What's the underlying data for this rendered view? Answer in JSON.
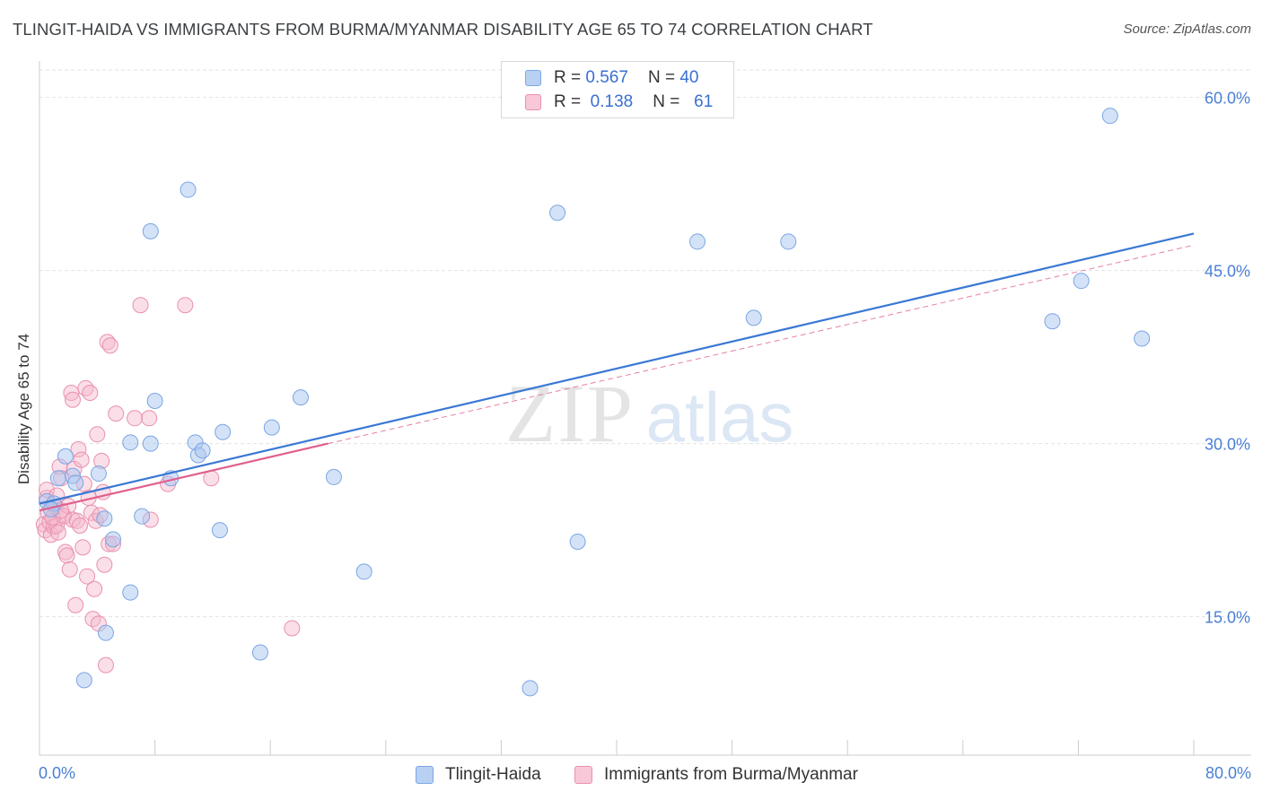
{
  "title": "TLINGIT-HAIDA VS IMMIGRANTS FROM BURMA/MYANMAR DISABILITY AGE 65 TO 74 CORRELATION CHART",
  "source": "Source: ZipAtlas.com",
  "watermark": "ZIPatlas",
  "colors": {
    "blue_fill": "#a9c6ef",
    "blue_stroke": "#7aa6e4",
    "blue_line": "#3a78d4",
    "pink_fill": "#f5b9cd",
    "pink_stroke": "#ea8fb0",
    "pink_line": "#e0608e",
    "tick_text": "#4a7fd4",
    "grid": "#e2e2e2"
  },
  "legend": {
    "rows": [
      {
        "r_label": "R =",
        "r_value": "0.567",
        "n_label": "N =",
        "n_value": "40"
      },
      {
        "r_label": "R =",
        "r_value": "0.138",
        "n_label": "N =",
        "n_value": "61"
      }
    ]
  },
  "chart_data": {
    "type": "scatter",
    "title": "TLINGIT-HAIDA VS IMMIGRANTS FROM BURMA/MYANMAR DISABILITY AGE 65 TO 74 CORRELATION CHART",
    "xlabel": "",
    "ylabel": "Disability Age 65 to 74",
    "xlim": [
      0,
      80
    ],
    "ylim": [
      3,
      63
    ],
    "x_tick_labels": [
      "0.0%",
      "80.0%"
    ],
    "y_ticks": [
      15,
      30,
      45,
      60
    ],
    "y_tick_labels": [
      "15.0%",
      "30.0%",
      "45.0%",
      "60.0%"
    ],
    "grid": true,
    "legend_position": "top-center",
    "series": [
      {
        "name": "Tlingit-Haida",
        "r": 0.567,
        "n": 40,
        "points": [
          [
            0.5,
            25.0
          ],
          [
            1.0,
            24.8
          ],
          [
            1.3,
            27.0
          ],
          [
            1.8,
            28.9
          ],
          [
            2.3,
            27.2
          ],
          [
            2.5,
            26.6
          ],
          [
            4.1,
            27.4
          ],
          [
            4.5,
            23.5
          ],
          [
            5.1,
            21.7
          ],
          [
            3.1,
            9.5
          ],
          [
            4.6,
            13.6
          ],
          [
            6.3,
            30.1
          ],
          [
            6.3,
            17.1
          ],
          [
            7.1,
            23.7
          ],
          [
            7.7,
            48.4
          ],
          [
            7.7,
            30.0
          ],
          [
            8.0,
            33.7
          ],
          [
            9.1,
            27.0
          ],
          [
            10.3,
            52.0
          ],
          [
            10.8,
            30.1
          ],
          [
            11.0,
            29.0
          ],
          [
            11.3,
            29.4
          ],
          [
            12.5,
            22.5
          ],
          [
            12.7,
            31.0
          ],
          [
            15.3,
            11.9
          ],
          [
            16.1,
            31.4
          ],
          [
            18.1,
            34.0
          ],
          [
            20.4,
            27.1
          ],
          [
            22.5,
            18.9
          ],
          [
            34.0,
            8.8
          ],
          [
            35.9,
            50.0
          ],
          [
            37.3,
            21.5
          ],
          [
            45.6,
            47.5
          ],
          [
            49.5,
            40.9
          ],
          [
            51.9,
            47.5
          ],
          [
            70.2,
            40.6
          ],
          [
            72.2,
            44.1
          ],
          [
            74.2,
            58.4
          ],
          [
            76.4,
            39.1
          ],
          [
            0.8,
            24.3
          ]
        ],
        "trend": {
          "x": [
            0,
            80
          ],
          "y": [
            24.8,
            48.2
          ]
        }
      },
      {
        "name": "Immigrants from Burma/Myanmar",
        "r": 0.138,
        "n": 61,
        "points": [
          [
            0.3,
            23.0
          ],
          [
            0.4,
            22.5
          ],
          [
            0.5,
            25.3
          ],
          [
            0.5,
            26.0
          ],
          [
            0.6,
            24.0
          ],
          [
            0.7,
            23.2
          ],
          [
            0.8,
            22.1
          ],
          [
            1.0,
            22.8
          ],
          [
            1.1,
            24.5
          ],
          [
            1.2,
            22.9
          ],
          [
            1.2,
            25.5
          ],
          [
            1.3,
            22.3
          ],
          [
            1.4,
            28.0
          ],
          [
            1.5,
            27.0
          ],
          [
            1.6,
            23.8
          ],
          [
            1.7,
            23.7
          ],
          [
            1.8,
            20.6
          ],
          [
            1.9,
            20.3
          ],
          [
            2.0,
            24.6
          ],
          [
            2.1,
            19.1
          ],
          [
            2.2,
            34.4
          ],
          [
            2.3,
            33.8
          ],
          [
            2.3,
            23.4
          ],
          [
            2.4,
            27.8
          ],
          [
            2.5,
            16.0
          ],
          [
            2.6,
            23.3
          ],
          [
            2.7,
            29.5
          ],
          [
            2.8,
            22.9
          ],
          [
            2.9,
            28.6
          ],
          [
            3.0,
            21.0
          ],
          [
            3.1,
            26.5
          ],
          [
            3.2,
            34.8
          ],
          [
            3.3,
            18.5
          ],
          [
            3.4,
            25.3
          ],
          [
            3.5,
            34.4
          ],
          [
            3.6,
            24.0
          ],
          [
            3.7,
            14.8
          ],
          [
            3.8,
            17.4
          ],
          [
            3.9,
            23.3
          ],
          [
            4.0,
            30.8
          ],
          [
            4.1,
            14.4
          ],
          [
            4.2,
            23.8
          ],
          [
            4.3,
            28.5
          ],
          [
            4.4,
            25.8
          ],
          [
            4.5,
            19.5
          ],
          [
            4.6,
            10.8
          ],
          [
            4.7,
            38.8
          ],
          [
            4.8,
            21.3
          ],
          [
            4.9,
            38.5
          ],
          [
            5.1,
            21.3
          ],
          [
            5.3,
            32.6
          ],
          [
            6.6,
            32.2
          ],
          [
            7.0,
            42.0
          ],
          [
            7.6,
            32.2
          ],
          [
            7.7,
            23.4
          ],
          [
            8.9,
            26.5
          ],
          [
            10.1,
            42.0
          ],
          [
            11.9,
            27.0
          ],
          [
            17.5,
            14.0
          ],
          [
            0.9,
            23.6
          ],
          [
            1.5,
            24.2
          ]
        ],
        "trend": {
          "x": [
            0,
            20
          ],
          "y": [
            24.2,
            30.0
          ]
        },
        "trend_dashed": {
          "x": [
            20,
            80
          ],
          "y": [
            30.0,
            47.2
          ]
        }
      }
    ]
  },
  "bottom_legend": [
    {
      "label": "Tlingit-Haida"
    },
    {
      "label": "Immigrants from Burma/Myanmar"
    }
  ]
}
